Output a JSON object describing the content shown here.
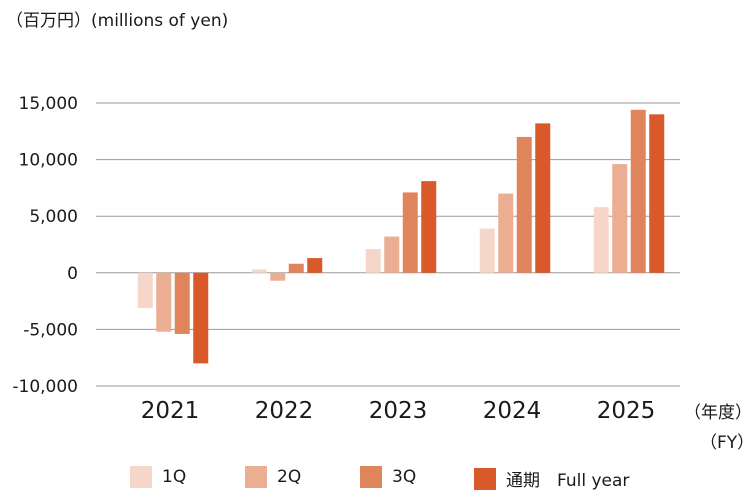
{
  "unit_label": "（百万円）(millions of yen)",
  "fy_jp": "（年度）",
  "fy_en": "（FY）",
  "legend": [
    {
      "label": "1Q",
      "color": "#f6d6c9"
    },
    {
      "label": "2Q",
      "color": "#ecae92"
    },
    {
      "label": "3Q",
      "color": "#e0845c"
    },
    {
      "label": "通期　Full year",
      "color": "#d9592a"
    }
  ],
  "chart_data": {
    "type": "bar",
    "categories": [
      "2021",
      "2022",
      "2023",
      "2024",
      "2025"
    ],
    "series": [
      {
        "name": "1Q",
        "color": "#f6d6c9",
        "values": [
          -3100,
          300,
          2100,
          3900,
          5800
        ]
      },
      {
        "name": "2Q",
        "color": "#ecae92",
        "values": [
          -5200,
          -700,
          3200,
          7000,
          9600
        ]
      },
      {
        "name": "3Q",
        "color": "#e0845c",
        "values": [
          -5400,
          800,
          7100,
          12000,
          14400
        ]
      },
      {
        "name": "通期　Full year",
        "color": "#d9592a",
        "values": [
          -8000,
          1300,
          8100,
          13200,
          14000
        ]
      }
    ],
    "yticks": [
      15000,
      10000,
      5000,
      0,
      -5000,
      -10000
    ],
    "ytick_labels": [
      "15,000",
      "10,000",
      "5,000",
      "0",
      "-5,000",
      "-10,000"
    ],
    "ylim": [
      -10000,
      15000
    ],
    "grid": true,
    "legend_position": "bottom"
  }
}
